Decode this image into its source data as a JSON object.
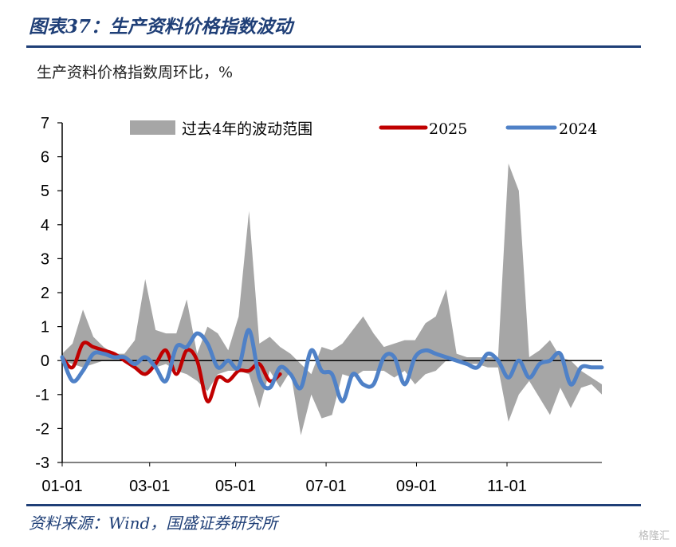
{
  "header": {
    "title": "图表37：生产资料价格指数波动"
  },
  "subtitle": "生产资料价格指数周环比，%",
  "footer": {
    "source": "资料来源：Wind，国盛证券研究所",
    "watermark": "格隆汇"
  },
  "colors": {
    "band": "#a6a6a6",
    "s2025": "#c00000",
    "s2024": "#4f81c7",
    "brand": "#1f3f77"
  },
  "chart_data": {
    "type": "line",
    "title": "",
    "xlabel": "",
    "ylabel": "生产资料价格指数周环比，%",
    "ylim": [
      -3,
      7
    ],
    "yticks": [
      -3,
      -2,
      -1,
      0,
      1,
      2,
      3,
      4,
      5,
      6,
      7
    ],
    "xlim": [
      1,
      53
    ],
    "xticks": [
      {
        "label": "01-01",
        "week": 1
      },
      {
        "label": "03-01",
        "week": 9.43
      },
      {
        "label": "05-01",
        "week": 17.71
      },
      {
        "label": "07-01",
        "week": 26.43
      },
      {
        "label": "09-01",
        "week": 35.14
      },
      {
        "label": "11-01",
        "week": 43.86
      }
    ],
    "legend": {
      "placement": "top",
      "entries": [
        "过去4年的波动范围",
        "2025",
        "2024"
      ]
    },
    "band": {
      "name": "过去4年的波动范围",
      "x": [
        1,
        2,
        3,
        4,
        5,
        6,
        7,
        8,
        9,
        10,
        11,
        12,
        13,
        14,
        15,
        16,
        17,
        18,
        19,
        20,
        21,
        22,
        23,
        24,
        25,
        26,
        27,
        28,
        29,
        30,
        31,
        32,
        33,
        34,
        35,
        36,
        37,
        38,
        39,
        40,
        41,
        42,
        43,
        44,
        45,
        46,
        47,
        48,
        49,
        50,
        51,
        52,
        53
      ],
      "upper": [
        0.2,
        0.5,
        1.5,
        0.7,
        0.4,
        0.2,
        0.2,
        0.6,
        2.4,
        0.9,
        0.8,
        0.8,
        1.8,
        0.2,
        1.0,
        0.8,
        0.3,
        1.3,
        4.4,
        0.5,
        0.7,
        0.4,
        0.2,
        -0.1,
        -0.4,
        0.4,
        0.3,
        0.5,
        0.9,
        1.3,
        0.8,
        0.4,
        0.5,
        0.6,
        0.6,
        1.1,
        1.3,
        2.1,
        0.2,
        0.1,
        0.1,
        0.1,
        0.1,
        5.8,
        5.0,
        0.1,
        0.3,
        0.6,
        0.1,
        0.0,
        -0.3,
        -0.5,
        -0.7
      ],
      "lower": [
        0.0,
        -0.1,
        -0.2,
        -0.1,
        0.0,
        0.0,
        0.0,
        -0.2,
        -0.4,
        -0.2,
        -0.1,
        -0.3,
        -0.4,
        -0.6,
        -0.9,
        -0.4,
        -0.3,
        -0.3,
        -0.4,
        -1.4,
        -0.3,
        -0.8,
        -0.3,
        -2.2,
        -1.0,
        -1.7,
        -1.6,
        -0.4,
        -0.5,
        -0.3,
        -0.3,
        -0.3,
        -0.5,
        -0.3,
        -0.7,
        -0.4,
        -0.3,
        0.0,
        0.0,
        -0.1,
        -0.1,
        -0.2,
        -0.2,
        -1.8,
        -1.0,
        -0.6,
        -1.1,
        -1.6,
        -0.8,
        -1.4,
        -0.8,
        -0.7,
        -1.0
      ]
    },
    "series": [
      {
        "name": "2025",
        "x": [
          1,
          2,
          3,
          4,
          5,
          6,
          7,
          8,
          9,
          10,
          11,
          12,
          13,
          14,
          15,
          16,
          17,
          18,
          19,
          20,
          21,
          22
        ],
        "values": [
          0.1,
          -0.2,
          0.5,
          0.4,
          0.3,
          0.2,
          0.0,
          -0.2,
          -0.4,
          -0.1,
          0.3,
          -0.4,
          0.3,
          0.0,
          -1.2,
          -0.5,
          -0.6,
          -0.3,
          -0.3,
          -0.1,
          -0.6,
          -0.4
        ]
      },
      {
        "name": "2024",
        "x": [
          1,
          2,
          3,
          4,
          5,
          6,
          7,
          8,
          9,
          10,
          11,
          12,
          13,
          14,
          15,
          16,
          17,
          18,
          19,
          20,
          21,
          22,
          23,
          24,
          25,
          26,
          27,
          28,
          29,
          30,
          31,
          32,
          33,
          34,
          35,
          36,
          37,
          38,
          39,
          40,
          41,
          42,
          43,
          44,
          45,
          46,
          47,
          48,
          49,
          50,
          51,
          52,
          53
        ],
        "values": [
          0.1,
          -0.6,
          -0.3,
          0.2,
          0.2,
          0.1,
          0.1,
          -0.1,
          0.1,
          -0.2,
          -0.6,
          0.4,
          0.4,
          0.8,
          0.5,
          -0.2,
          0.0,
          -0.2,
          0.9,
          -0.5,
          -0.8,
          -0.2,
          -0.4,
          -0.8,
          0.3,
          -0.3,
          -0.4,
          -1.2,
          -0.4,
          -0.7,
          -0.7,
          0.1,
          0.1,
          -0.7,
          0.1,
          0.3,
          0.2,
          0.1,
          0.0,
          -0.1,
          -0.2,
          0.2,
          0.0,
          -0.5,
          0.0,
          -0.5,
          -0.1,
          0.0,
          0.2,
          -0.7,
          -0.2,
          -0.2,
          -0.2
        ]
      }
    ]
  }
}
